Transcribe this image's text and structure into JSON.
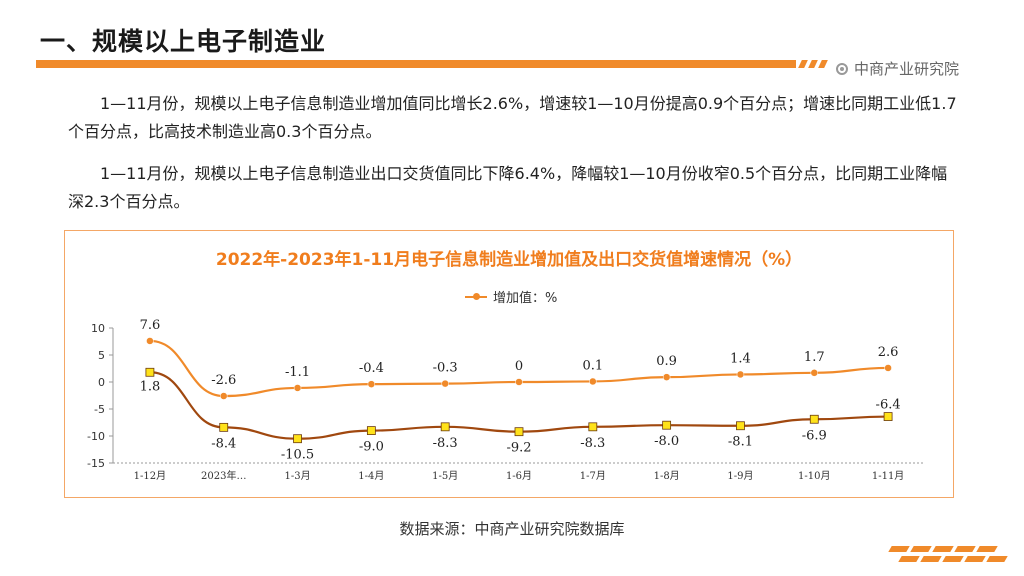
{
  "header": {
    "title": "一、规模以上电子制造业",
    "brand": "中商产业研究院"
  },
  "paragraphs": [
    "1—11月份，规模以上电子信息制造业增加值同比增长2.6%，增速较1—10月份提高0.9个百分点；增速比同期工业低1.7个百分点，比高技术制造业高0.3个百分点。",
    "1—11月份，规模以上电子信息制造业出口交货值同比下降6.4%，降幅较1—10月份收窄0.5个百分点，比同期工业降幅深2.3个百分点。"
  ],
  "source": "数据来源：中商产业研究院数据库",
  "colors": {
    "accent": "#f08a2a",
    "series_export": "#a0480f",
    "marker_fill": "#ffe21a"
  },
  "chart_data": {
    "type": "line",
    "title": "2022年-2023年1-11月电子信息制造业增加值及出口交货值增速情况（%）",
    "categories": [
      "1-12月",
      "2023年…",
      "1-3月",
      "1-4月",
      "1-5月",
      "1-6月",
      "1-7月",
      "1-8月",
      "1-9月",
      "1-10月",
      "1-11月"
    ],
    "series": [
      {
        "name": "增加值：%",
        "values": [
          7.6,
          -2.6,
          -1.1,
          -0.4,
          -0.3,
          0,
          0.1,
          0.9,
          1.4,
          1.7,
          2.6
        ],
        "labels": [
          "7.6",
          "-2.6",
          "-1.1",
          "-0.4",
          "-0.3",
          "0",
          "0.1",
          "0.9",
          "1.4",
          "1.7",
          "2.6"
        ]
      },
      {
        "name": "",
        "values": [
          1.8,
          -8.4,
          -10.5,
          -9.0,
          -8.3,
          -9.2,
          -8.3,
          -8.0,
          -8.1,
          -6.9,
          -6.4
        ],
        "labels": [
          "1.8",
          "-8.4",
          "-10.5",
          "-9.0",
          "-8.3",
          "-9.2",
          "-8.3",
          "-8.0",
          "-8.1",
          "-6.9",
          "-6.4"
        ]
      }
    ],
    "yticks": [
      "10",
      "5",
      "0",
      "-5",
      "-10",
      "-15"
    ],
    "ylim": [
      -15,
      10
    ],
    "legend_position": "top-center",
    "grid": false
  }
}
